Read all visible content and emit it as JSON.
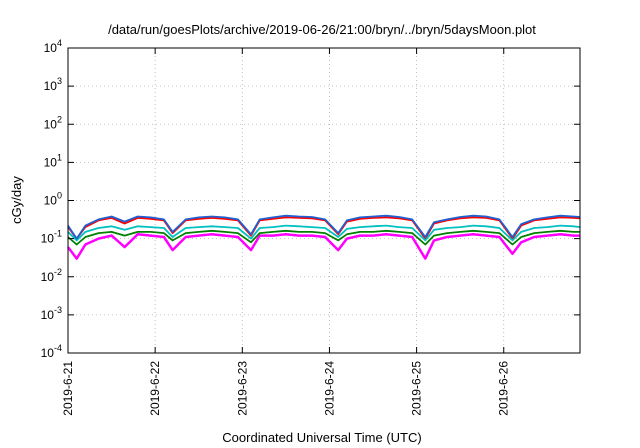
{
  "chart_data": {
    "type": "line",
    "title": "/data/run/goesPlots/archive/2019-06-26/21:00/bryn/../bryn/5daysMoon.plot",
    "xlabel": "Coordinated Universal Time (UTC)",
    "ylabel": "cGy/day",
    "y_scale": "log",
    "ylim": [
      0.0001,
      10000
    ],
    "x_range": [
      "2019-06-21",
      "2019-06-26 21:00"
    ],
    "x_range_days": [
      0,
      5.875
    ],
    "x_ticks": [
      {
        "label": "2019-6-21",
        "day": 0
      },
      {
        "label": "2019-6-22",
        "day": 1
      },
      {
        "label": "2019-6-23",
        "day": 2
      },
      {
        "label": "2019-6-24",
        "day": 3
      },
      {
        "label": "2019-6-25",
        "day": 4
      },
      {
        "label": "2019-6-26",
        "day": 5
      }
    ],
    "y_ticks": [
      {
        "base": "10",
        "exp": "4",
        "value": 10000
      },
      {
        "base": "10",
        "exp": "3",
        "value": 1000
      },
      {
        "base": "10",
        "exp": "2",
        "value": 100
      },
      {
        "base": "10",
        "exp": "1",
        "value": 10
      },
      {
        "base": "10",
        "exp": "0",
        "value": 1
      },
      {
        "base": "10",
        "exp": "-1",
        "value": 0.1
      },
      {
        "base": "10",
        "exp": "-2",
        "value": 0.01
      },
      {
        "base": "10",
        "exp": "-3",
        "value": 0.001
      },
      {
        "base": "10",
        "exp": "-4",
        "value": 0.0001
      }
    ],
    "grid": true,
    "series": [
      {
        "color": "#ff00ff",
        "x": [
          0,
          0.1,
          0.2,
          0.35,
          0.5,
          0.65,
          0.8,
          0.95,
          1.1,
          1.2,
          1.35,
          1.5,
          1.65,
          1.8,
          1.95,
          2.1,
          2.2,
          2.35,
          2.5,
          2.65,
          2.8,
          2.95,
          3.1,
          3.2,
          3.35,
          3.5,
          3.65,
          3.8,
          3.95,
          4.1,
          4.2,
          4.35,
          4.5,
          4.65,
          4.8,
          4.95,
          5.1,
          5.2,
          5.35,
          5.5,
          5.65,
          5.8,
          5.875
        ],
        "y": [
          0.06,
          0.03,
          0.07,
          0.1,
          0.12,
          0.06,
          0.13,
          0.12,
          0.11,
          0.05,
          0.11,
          0.12,
          0.13,
          0.12,
          0.11,
          0.05,
          0.12,
          0.12,
          0.13,
          0.12,
          0.12,
          0.11,
          0.05,
          0.1,
          0.12,
          0.12,
          0.13,
          0.12,
          0.11,
          0.03,
          0.09,
          0.11,
          0.12,
          0.13,
          0.12,
          0.11,
          0.04,
          0.08,
          0.11,
          0.12,
          0.13,
          0.12,
          0.12
        ]
      },
      {
        "color": "#ff0000",
        "x": [
          0,
          0.1,
          0.2,
          0.35,
          0.5,
          0.65,
          0.8,
          0.95,
          1.1,
          1.2,
          1.35,
          1.5,
          1.65,
          1.8,
          1.95,
          2.1,
          2.2,
          2.35,
          2.5,
          2.65,
          2.8,
          2.95,
          3.1,
          3.2,
          3.35,
          3.5,
          3.65,
          3.8,
          3.95,
          4.1,
          4.2,
          4.35,
          4.5,
          4.65,
          4.8,
          4.95,
          5.1,
          5.2,
          5.35,
          5.5,
          5.65,
          5.8,
          5.875
        ],
        "y": [
          0.2,
          0.1,
          0.2,
          0.3,
          0.35,
          0.25,
          0.35,
          0.33,
          0.3,
          0.14,
          0.3,
          0.33,
          0.35,
          0.33,
          0.3,
          0.12,
          0.3,
          0.33,
          0.36,
          0.35,
          0.34,
          0.3,
          0.13,
          0.28,
          0.33,
          0.35,
          0.36,
          0.34,
          0.3,
          0.1,
          0.25,
          0.3,
          0.34,
          0.36,
          0.35,
          0.3,
          0.1,
          0.22,
          0.3,
          0.33,
          0.36,
          0.35,
          0.34
        ]
      },
      {
        "color": "#008000",
        "x": [
          0,
          0.1,
          0.2,
          0.35,
          0.5,
          0.65,
          0.8,
          0.95,
          1.1,
          1.2,
          1.35,
          1.5,
          1.65,
          1.8,
          1.95,
          2.1,
          2.2,
          2.35,
          2.5,
          2.65,
          2.8,
          2.95,
          3.1,
          3.2,
          3.35,
          3.5,
          3.65,
          3.8,
          3.95,
          4.1,
          4.2,
          4.35,
          4.5,
          4.65,
          4.8,
          4.95,
          5.1,
          5.2,
          5.35,
          5.5,
          5.65,
          5.8,
          5.875
        ],
        "y": [
          0.11,
          0.07,
          0.11,
          0.14,
          0.15,
          0.12,
          0.15,
          0.15,
          0.14,
          0.09,
          0.14,
          0.15,
          0.16,
          0.15,
          0.14,
          0.08,
          0.14,
          0.15,
          0.16,
          0.15,
          0.15,
          0.14,
          0.09,
          0.13,
          0.15,
          0.15,
          0.16,
          0.15,
          0.14,
          0.07,
          0.12,
          0.14,
          0.15,
          0.16,
          0.15,
          0.14,
          0.07,
          0.11,
          0.14,
          0.15,
          0.16,
          0.15,
          0.15
        ]
      },
      {
        "color": "#00c0c0",
        "x": [
          0,
          0.1,
          0.2,
          0.35,
          0.5,
          0.65,
          0.8,
          0.95,
          1.1,
          1.2,
          1.35,
          1.5,
          1.65,
          1.8,
          1.95,
          2.1,
          2.2,
          2.35,
          2.5,
          2.65,
          2.8,
          2.95,
          3.1,
          3.2,
          3.35,
          3.5,
          3.65,
          3.8,
          3.95,
          4.1,
          4.2,
          4.35,
          4.5,
          4.65,
          4.8,
          4.95,
          5.1,
          5.2,
          5.35,
          5.5,
          5.65,
          5.8,
          5.875
        ],
        "y": [
          0.15,
          0.09,
          0.15,
          0.19,
          0.21,
          0.17,
          0.21,
          0.2,
          0.19,
          0.11,
          0.19,
          0.2,
          0.21,
          0.2,
          0.19,
          0.1,
          0.19,
          0.2,
          0.22,
          0.21,
          0.2,
          0.19,
          0.11,
          0.18,
          0.2,
          0.21,
          0.22,
          0.2,
          0.19,
          0.09,
          0.17,
          0.19,
          0.2,
          0.22,
          0.21,
          0.19,
          0.09,
          0.15,
          0.19,
          0.2,
          0.22,
          0.21,
          0.2
        ]
      },
      {
        "color": "#2060d0",
        "x": [
          0,
          0.1,
          0.2,
          0.35,
          0.5,
          0.65,
          0.8,
          0.95,
          1.1,
          1.2,
          1.35,
          1.5,
          1.65,
          1.8,
          1.95,
          2.1,
          2.2,
          2.35,
          2.5,
          2.65,
          2.8,
          2.95,
          3.1,
          3.2,
          3.35,
          3.5,
          3.65,
          3.8,
          3.95,
          4.1,
          4.2,
          4.35,
          4.5,
          4.65,
          4.8,
          4.95,
          5.1,
          5.2,
          5.35,
          5.5,
          5.65,
          5.8,
          5.875
        ],
        "y": [
          0.22,
          0.1,
          0.22,
          0.32,
          0.38,
          0.28,
          0.38,
          0.36,
          0.32,
          0.15,
          0.32,
          0.36,
          0.38,
          0.36,
          0.32,
          0.13,
          0.32,
          0.36,
          0.4,
          0.38,
          0.37,
          0.32,
          0.14,
          0.3,
          0.36,
          0.38,
          0.4,
          0.37,
          0.32,
          0.11,
          0.27,
          0.32,
          0.37,
          0.4,
          0.38,
          0.32,
          0.11,
          0.24,
          0.32,
          0.36,
          0.4,
          0.38,
          0.37
        ]
      }
    ]
  }
}
